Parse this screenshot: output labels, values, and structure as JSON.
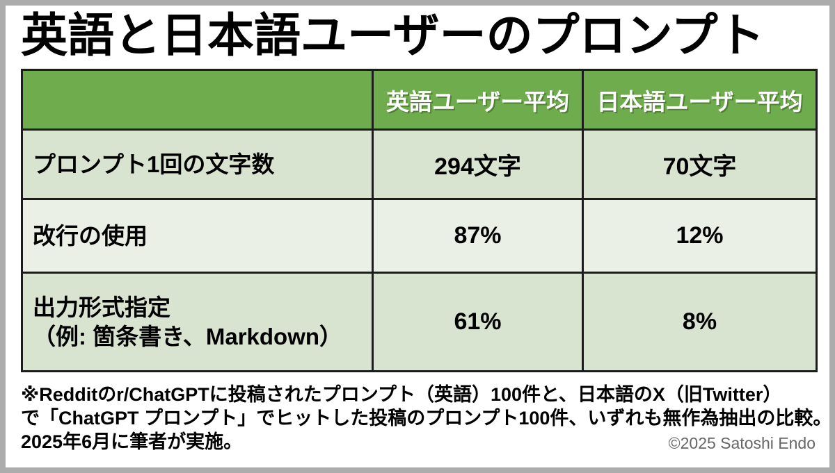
{
  "title": "英語と日本語ユーザーのプロンプト",
  "chart_data": {
    "type": "table",
    "title": "英語と日本語ユーザーのプロンプト",
    "columns": [
      "",
      "英語ユーザー平均",
      "日本語ユーザー平均"
    ],
    "rows": [
      {
        "label_lines": [
          "プロンプト1回の文字数",
          ""
        ],
        "values": [
          "294文字",
          "70文字"
        ]
      },
      {
        "label_lines": [
          "改行の使用",
          ""
        ],
        "values": [
          "87%",
          "12%"
        ]
      },
      {
        "label_lines": [
          "出力形式指定",
          "（例: 箇条書き、Markdown）"
        ],
        "values": [
          "61%",
          "8%"
        ]
      }
    ],
    "notes": "無作為抽出の比較、2025年6月実施、英語=Reddit r/ChatGPT 100件、日本語=X（旧Twitter）100件"
  },
  "footnote": {
    "line1": "※Redditのr/ChatGPTに投稿されたプロンプト（英語）100件と、日本語のX（旧Twitter）",
    "line2": "で「ChatGPT プロンプト」でヒットした投稿のプロンプト100件、いずれも無作為抽出の比較。",
    "line3": "2025年6月に筆者が実施。"
  },
  "copyright": "©2025 Satoshi Endo",
  "colors": {
    "header_green": "#6FAC4D",
    "row_dark_sage": "#D8E4CF",
    "row_light_sage": "#EBF0E7",
    "table_border": "#1C1C1C",
    "frame_border": "#ACACAC",
    "title_text": "#000000",
    "header_text": "#FFFFFF",
    "copyright_text": "#666666"
  }
}
